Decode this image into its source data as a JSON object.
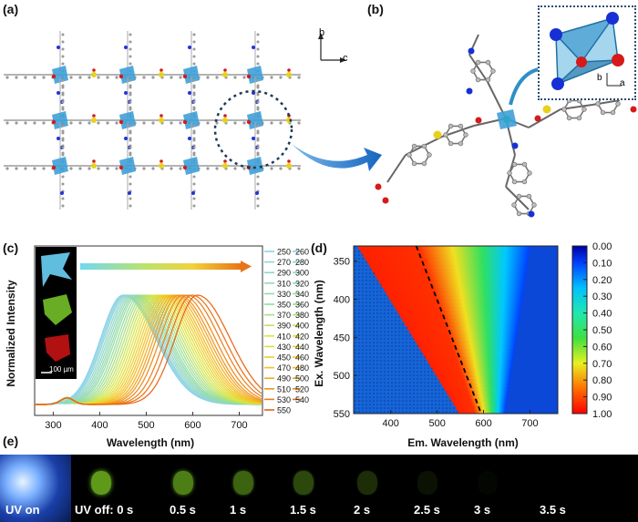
{
  "panel_labels": {
    "a": "(a)",
    "b": "(b)",
    "c": "(c)",
    "d": "(d)",
    "e": "(e)"
  },
  "panel_a": {
    "axis_b": "b",
    "axis_c": "c"
  },
  "panel_b": {
    "axis_b": "b",
    "axis_a": "a"
  },
  "panel_c": {
    "scale_bar": "100 µm",
    "legend_left": [
      "250",
      "270",
      "290",
      "310",
      "330",
      "350",
      "370",
      "390",
      "410",
      "430",
      "450",
      "470",
      "490",
      "510",
      "530",
      "550"
    ],
    "legend_right": [
      "260",
      "280",
      "300",
      "320",
      "340",
      "360",
      "380",
      "400",
      "420",
      "440",
      "460",
      "480",
      "500",
      "520",
      "540"
    ]
  },
  "panel_d": {
    "colorbar_ticks": [
      "0.00",
      "0.10",
      "0.20",
      "0.30",
      "0.40",
      "0.50",
      "0.60",
      "0.70",
      "0.80",
      "0.90",
      "1.00"
    ]
  },
  "panel_e": {
    "labels": [
      "UV on",
      "UV off: 0 s",
      "0.5 s",
      "1 s",
      "1.5 s",
      "2 s",
      "2.5 s",
      "3 s",
      "3.5 s"
    ],
    "glow_intensity": [
      1.0,
      0.85,
      0.7,
      0.55,
      0.4,
      0.25,
      0.1,
      0.03,
      0.0
    ]
  },
  "chart_data": [
    {
      "type": "line",
      "title": "",
      "xlabel": "Wavelength (nm)",
      "ylabel": "Normalized Intensity",
      "xlim": [
        260,
        750
      ],
      "xticks": [
        "300",
        "400",
        "500",
        "600",
        "700"
      ],
      "series_note": "Normalized emission spectra, one per excitation wavelength 250-550 nm; peak shifts from ~450 to ~610 nm",
      "excitation": [
        250,
        260,
        270,
        280,
        290,
        300,
        310,
        320,
        330,
        340,
        350,
        360,
        370,
        380,
        390,
        400,
        410,
        420,
        430,
        440,
        450,
        460,
        470,
        480,
        490,
        500,
        510,
        520,
        530,
        540,
        550
      ],
      "peak_nm": [
        450,
        452,
        455,
        458,
        462,
        466,
        470,
        474,
        478,
        482,
        487,
        492,
        497,
        502,
        507,
        512,
        517,
        522,
        527,
        532,
        537,
        542,
        547,
        552,
        558,
        564,
        570,
        578,
        588,
        598,
        610
      ]
    },
    {
      "type": "heatmap",
      "title": "",
      "xlabel": "Em. Wavelength (nm)",
      "ylabel": "Ex. Wavelength (nm)",
      "xlim": [
        320,
        760
      ],
      "ylim": [
        330,
        550
      ],
      "xticks": [
        "400",
        "500",
        "600",
        "700"
      ],
      "yticks": [
        "350",
        "400",
        "450",
        "500",
        "550"
      ],
      "zrange": [
        0,
        1
      ],
      "ridge": {
        "ex": [
          330,
          550
        ],
        "em": [
          455,
          595
        ]
      }
    }
  ]
}
